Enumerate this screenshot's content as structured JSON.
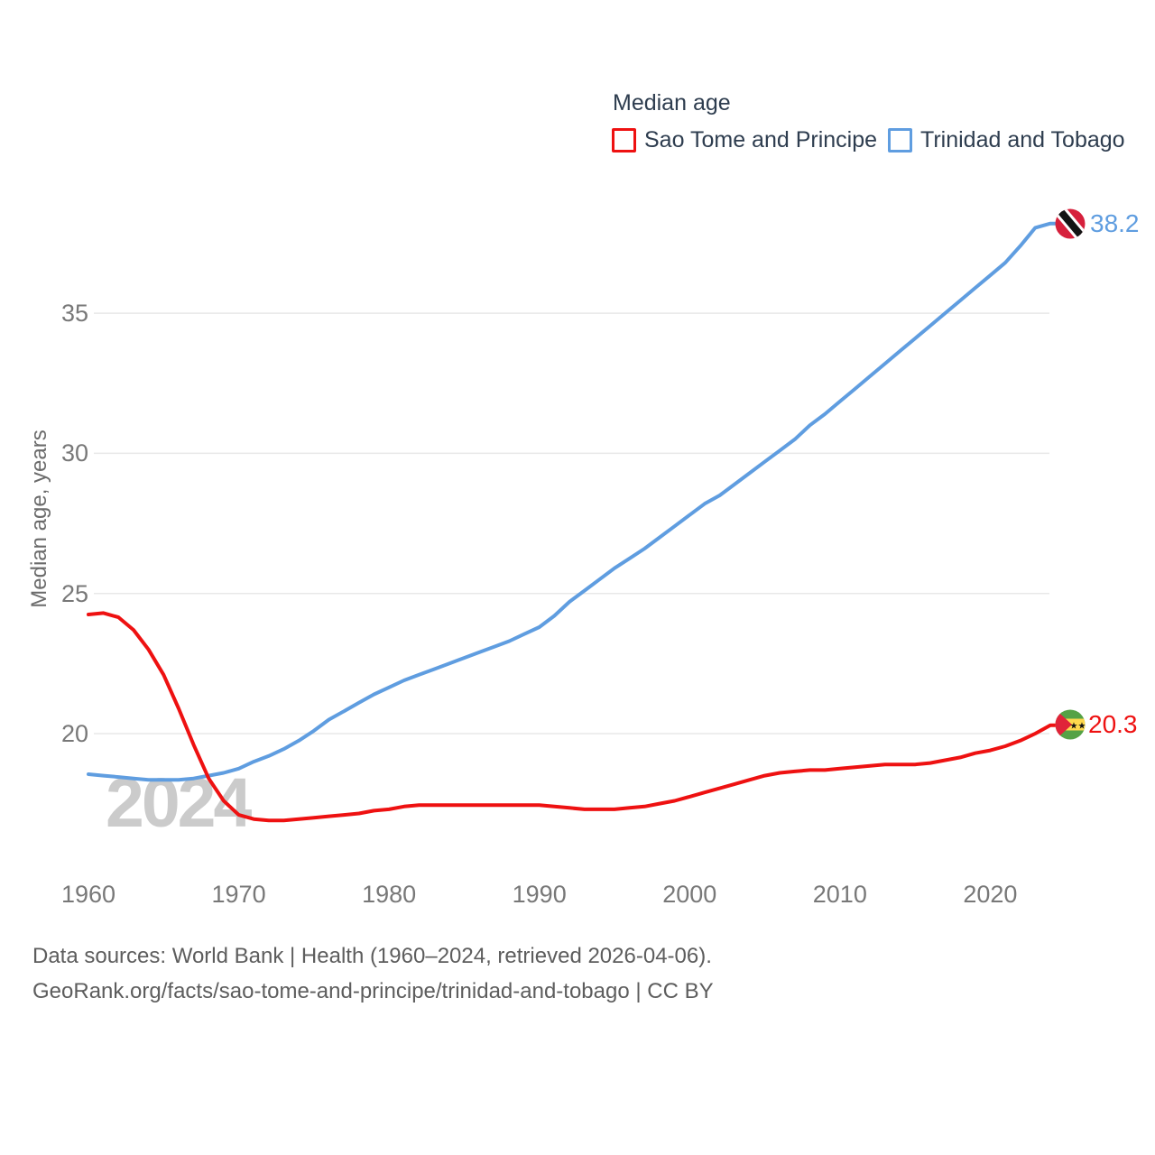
{
  "legend": {
    "title": "Median age",
    "series1": "Sao Tome and Principe",
    "series2": "Trinidad and Tobago"
  },
  "axes": {
    "y_title": "Median age, years"
  },
  "watermark": "2024",
  "footer": {
    "line1": "Data sources: World Bank | Health (1960–2024, retrieved 2026-04-06).",
    "line2": "GeoRank.org/facts/sao-tome-and-principe/trinidad-and-tobago | CC BY"
  },
  "chart_data": {
    "type": "line",
    "title": "Median age",
    "ylabel": "Median age, years",
    "x_start": 1960,
    "x_end": 2024,
    "x_ticks": [
      1960,
      1970,
      1980,
      1990,
      2000,
      2010,
      2020
    ],
    "y_ticks": [
      20,
      25,
      30,
      35
    ],
    "ylim": [
      16.5,
      39
    ],
    "grid": "horizontal",
    "legend_position": "top",
    "series": [
      {
        "name": "Sao Tome and Principe",
        "color": "#ee1111",
        "end_label": "20.3",
        "flag": "sao-tome-and-principe",
        "values": [
          24.25,
          24.3,
          24.15,
          23.7,
          23.0,
          22.1,
          20.9,
          19.6,
          18.4,
          17.6,
          17.1,
          16.95,
          16.9,
          16.9,
          16.95,
          17.0,
          17.05,
          17.1,
          17.15,
          17.25,
          17.3,
          17.4,
          17.45,
          17.45,
          17.45,
          17.45,
          17.45,
          17.45,
          17.45,
          17.45,
          17.45,
          17.4,
          17.35,
          17.3,
          17.3,
          17.3,
          17.35,
          17.4,
          17.5,
          17.6,
          17.75,
          17.9,
          18.05,
          18.2,
          18.35,
          18.5,
          18.6,
          18.65,
          18.7,
          18.7,
          18.75,
          18.8,
          18.85,
          18.9,
          18.9,
          18.9,
          18.95,
          19.05,
          19.15,
          19.3,
          19.4,
          19.55,
          19.75,
          20.0,
          20.3
        ]
      },
      {
        "name": "Trinidad and Tobago",
        "color": "#5f9de0",
        "end_label": "38.2",
        "flag": "trinidad-and-tobago",
        "values": [
          18.55,
          18.5,
          18.45,
          18.4,
          18.35,
          18.35,
          18.35,
          18.4,
          18.5,
          18.6,
          18.75,
          19.0,
          19.2,
          19.45,
          19.75,
          20.1,
          20.5,
          20.8,
          21.1,
          21.4,
          21.65,
          21.9,
          22.1,
          22.3,
          22.5,
          22.7,
          22.9,
          23.1,
          23.3,
          23.55,
          23.8,
          24.2,
          24.7,
          25.1,
          25.5,
          25.9,
          26.25,
          26.6,
          27.0,
          27.4,
          27.8,
          28.2,
          28.5,
          28.9,
          29.3,
          29.7,
          30.1,
          30.5,
          31.0,
          31.4,
          31.85,
          32.3,
          32.75,
          33.2,
          33.65,
          34.1,
          34.55,
          35.0,
          35.45,
          35.9,
          36.35,
          36.8,
          37.4,
          38.05,
          38.2
        ]
      }
    ]
  }
}
